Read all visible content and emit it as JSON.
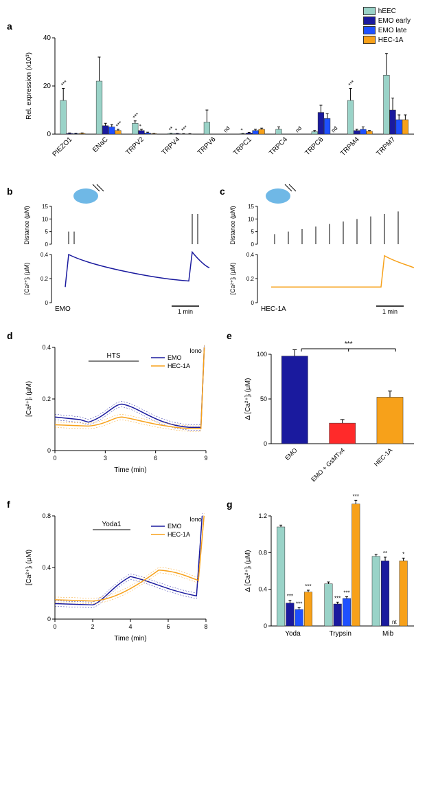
{
  "legend": [
    {
      "label": "hEEC",
      "color": "#9ad3c8"
    },
    {
      "label": "EMO early",
      "color": "#1a1a9e"
    },
    {
      "label": "EMO late",
      "color": "#1e50ff"
    },
    {
      "label": "HEC-1A",
      "color": "#f7a11a"
    }
  ],
  "panel_a": {
    "label": "a",
    "ylabel": "Rel. expression (x10³)",
    "ylim": [
      0,
      40
    ],
    "yticks": [
      0,
      20,
      40
    ],
    "categories": [
      "PIEZO1",
      "ENaC",
      "TRPV2",
      "TRPV4",
      "TRPV6",
      "TRPC1",
      "TRPC4",
      "TRPC6",
      "TRPM4",
      "TRPM7"
    ],
    "groups": [
      {
        "vals": [
          14,
          0.3,
          0.2,
          0.3
        ],
        "err": [
          5,
          0.2,
          0.2,
          0.2
        ],
        "sig": [
          "***",
          "",
          "",
          ""
        ]
      },
      {
        "vals": [
          22,
          3.5,
          3,
          1.5
        ],
        "err": [
          10,
          1,
          1,
          0.5
        ],
        "sig": [
          "",
          "",
          "",
          "***"
        ]
      },
      {
        "vals": [
          4.5,
          1.5,
          0.5,
          0.2
        ],
        "err": [
          1,
          0.5,
          0.3,
          0.1
        ],
        "sig": [
          "***",
          "*",
          "",
          ""
        ]
      },
      {
        "vals": [
          0.3,
          0.2,
          0.1,
          0.1
        ],
        "err": [
          0.1,
          0.1,
          0.1,
          0.1
        ],
        "sig": [
          "**",
          "*",
          "***",
          ""
        ]
      },
      {
        "vals": [
          5,
          0,
          0,
          0
        ],
        "err": [
          5,
          0,
          0,
          0
        ],
        "sig": [
          "",
          "",
          "",
          "nd"
        ]
      },
      {
        "vals": [
          0.2,
          0.5,
          1.5,
          2
        ],
        "err": [
          0.1,
          0.2,
          0.5,
          0.5
        ],
        "sig": [
          "*",
          "",
          "",
          ""
        ]
      },
      {
        "vals": [
          2,
          0,
          0,
          0
        ],
        "err": [
          1,
          0,
          0,
          0
        ],
        "sig": [
          "",
          "",
          "",
          "nd"
        ]
      },
      {
        "vals": [
          1,
          9,
          6.5,
          0
        ],
        "err": [
          0.5,
          3,
          2,
          0
        ],
        "sig": [
          "",
          "",
          "",
          "nd"
        ]
      },
      {
        "vals": [
          14,
          1.5,
          2,
          1.2
        ],
        "err": [
          5,
          0.5,
          1,
          0.3
        ],
        "sig": [
          "***",
          "",
          "",
          ""
        ]
      },
      {
        "vals": [
          24.5,
          10,
          6,
          6
        ],
        "err": [
          9,
          5,
          2,
          2
        ],
        "sig": [
          "",
          "",
          "",
          ""
        ]
      }
    ],
    "colors": [
      "#9ad3c8",
      "#1a1a9e",
      "#1e50ff",
      "#f7a11a"
    ]
  },
  "panel_b": {
    "label": "b",
    "ylabel_top": "Distance (µM)",
    "ylabel_bot": "[Ca²⁺]ᵢ (µM)",
    "ylim_top": [
      0,
      15
    ],
    "yticks_top": [
      0,
      5,
      10,
      15
    ],
    "ylim_bot": [
      0,
      0.4
    ],
    "yticks_bot": [
      0,
      0.2,
      0.4
    ],
    "scalebar": "1 min",
    "trace_label": "EMO",
    "trace_color": "#1a1a9e"
  },
  "panel_c": {
    "label": "c",
    "ylabel_top": "Distance (µM)",
    "ylabel_bot": "[Ca²⁺]ᵢ (µM)",
    "ylim_top": [
      0,
      15
    ],
    "yticks_top": [
      0,
      5,
      10,
      15
    ],
    "ylim_bot": [
      0,
      0.4
    ],
    "yticks_bot": [
      0,
      0.2,
      0.4
    ],
    "scalebar": "1 min",
    "trace_label": "HEC-1A",
    "trace_color": "#f7a11a"
  },
  "panel_d": {
    "label": "d",
    "ylabel": "[Ca²⁺]ᵢ (µM)",
    "xlabel": "Time (min)",
    "ylim": [
      0,
      0.4
    ],
    "yticks": [
      0,
      0.2,
      0.4
    ],
    "xlim": [
      0,
      9
    ],
    "xticks": [
      0,
      3,
      6,
      9
    ],
    "stim": "HTS",
    "anno": "Iono",
    "series": [
      {
        "label": "EMO",
        "color": "#1a1a9e"
      },
      {
        "label": "HEC-1A",
        "color": "#f7a11a"
      }
    ]
  },
  "panel_e": {
    "label": "e",
    "ylabel": "Δ [Ca²⁺]ᵢ (µM)",
    "ylim": [
      0,
      100
    ],
    "yticks": [
      0,
      50,
      100
    ],
    "categories": [
      "EMO",
      "EMO + GsMTx4",
      "HEC-1A"
    ],
    "vals": [
      98,
      23,
      52
    ],
    "err": [
      7,
      4,
      7
    ],
    "colors": [
      "#1a1a9e",
      "#ff2a2a",
      "#f7a11a"
    ],
    "sig": "***"
  },
  "panel_f": {
    "label": "f",
    "ylabel": "[Ca²⁺]ᵢ (µM)",
    "xlabel": "Time (min)",
    "ylim": [
      0,
      0.8
    ],
    "yticks": [
      0,
      0.4,
      0.8
    ],
    "xlim": [
      0,
      8
    ],
    "xticks": [
      0,
      2,
      4,
      6,
      8
    ],
    "stim": "Yoda1",
    "anno": "Iono",
    "series": [
      {
        "label": "EMO",
        "color": "#1a1a9e"
      },
      {
        "label": "HEC-1A",
        "color": "#f7a11a"
      }
    ]
  },
  "panel_g": {
    "label": "g",
    "ylabel": "Δ [Ca²⁺]ᵢ (µM)",
    "ylim": [
      0,
      1.2
    ],
    "yticks": [
      0,
      0.4,
      0.8,
      1.2
    ],
    "categories": [
      "Yoda",
      "Trypsin",
      "Mib"
    ],
    "groups": [
      {
        "vals": [
          1.08,
          0.25,
          0.18,
          0.37
        ],
        "err": [
          0.02,
          0.03,
          0.02,
          0.02
        ],
        "sig": [
          "",
          "***",
          "***",
          "***"
        ]
      },
      {
        "vals": [
          0.46,
          0.24,
          0.3,
          1.33
        ],
        "err": [
          0.02,
          0.02,
          0.02,
          0.04
        ],
        "sig": [
          "",
          "***",
          "***",
          "***"
        ]
      },
      {
        "vals": [
          0.76,
          0.71,
          0,
          0.71
        ],
        "err": [
          0.02,
          0.04,
          0,
          0.03
        ],
        "sig": [
          "",
          "**",
          "nt",
          "*"
        ]
      }
    ],
    "colors": [
      "#9ad3c8",
      "#1a1a9e",
      "#1e50ff",
      "#f7a11a"
    ]
  }
}
